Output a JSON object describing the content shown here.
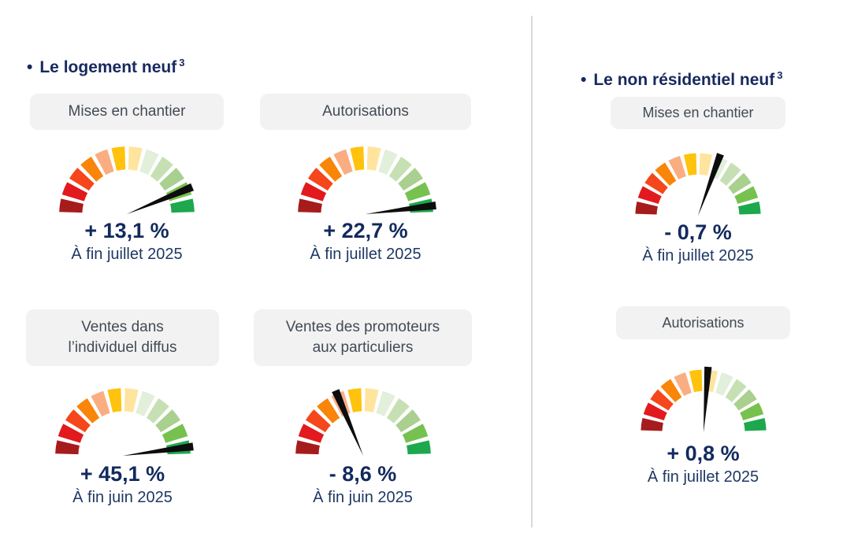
{
  "colors": {
    "title_navy": "#17295E",
    "value_navy": "#132A5E",
    "period_navy": "#1F3864",
    "pill_bg": "#F2F2F2",
    "pill_text": "#424A54",
    "divider": "#D9D9D9",
    "needle": "#0D0D0D"
  },
  "gauge_palette": [
    "#A61C1D",
    "#E21A1D",
    "#F5471B",
    "#F98509",
    "#FBAD82",
    "#FFC20D",
    "#FFE49E",
    "#E2EFDA",
    "#C6E0B4",
    "#A9D08E",
    "#77C14F",
    "#1DA84D"
  ],
  "sections": [
    {
      "bullet": "•",
      "title": "Le logement neuf",
      "footnote": "3",
      "gauges": [
        {
          "label": "Mises en chantier",
          "value": "+ 13,1 %",
          "period": "À fin juillet 2025",
          "needle_deg": 22.5
        },
        {
          "label": "Autorisations",
          "value": "+ 22,7 %",
          "period": "À fin juillet 2025",
          "needle_deg": 7
        },
        {
          "label": "Ventes dans\nl’individuel diffus",
          "value": "+ 45,1 %",
          "period": "À fin juin 2025",
          "needle_deg": 7.5
        },
        {
          "label": "Ventes des promoteurs\naux particuliers",
          "value": "- 8,6 %",
          "period": "À fin juin 2025",
          "needle_deg": 113
        }
      ]
    },
    {
      "bullet": "•",
      "title": "Le non résidentiel neuf",
      "footnote": "3",
      "gauges": [
        {
          "label": "Mises en chantier",
          "value": "- 0,7 %",
          "period": "À fin juillet 2025",
          "needle_deg": 70
        },
        {
          "label": "Autorisations",
          "value": "+ 0,8 %",
          "period": "À fin juillet 2025",
          "needle_deg": 86
        }
      ]
    }
  ],
  "chart_data": [
    {
      "type": "gauge",
      "section": "Le logement neuf",
      "label": "Mises en chantier",
      "value_pct": 13.1,
      "value_label": "+ 13,1 %",
      "period": "À fin juillet 2025",
      "scale_segments": 12,
      "scale": "semicircle dark-red (negative) to green (positive)"
    },
    {
      "type": "gauge",
      "section": "Le logement neuf",
      "label": "Autorisations",
      "value_pct": 22.7,
      "value_label": "+ 22,7 %",
      "period": "À fin juillet 2025",
      "scale_segments": 12,
      "scale": "semicircle dark-red (negative) to green (positive)"
    },
    {
      "type": "gauge",
      "section": "Le logement neuf",
      "label": "Ventes dans l’individuel diffus",
      "value_pct": 45.1,
      "value_label": "+ 45,1 %",
      "period": "À fin juin 2025",
      "scale_segments": 12,
      "scale": "semicircle dark-red (negative) to green (positive)"
    },
    {
      "type": "gauge",
      "section": "Le logement neuf",
      "label": "Ventes des promoteurs aux particuliers",
      "value_pct": -8.6,
      "value_label": "- 8,6 %",
      "period": "À fin juin 2025",
      "scale_segments": 12,
      "scale": "semicircle dark-red (negative) to green (positive)"
    },
    {
      "type": "gauge",
      "section": "Le non résidentiel neuf",
      "label": "Mises en chantier",
      "value_pct": -0.7,
      "value_label": "- 0,7 %",
      "period": "À fin juillet 2025",
      "scale_segments": 12,
      "scale": "semicircle dark-red (negative) to green (positive)"
    },
    {
      "type": "gauge",
      "section": "Le non résidentiel neuf",
      "label": "Autorisations",
      "value_pct": 0.8,
      "value_label": "+ 0,8 %",
      "period": "À fin juillet 2025",
      "scale_segments": 12,
      "scale": "semicircle dark-red (negative) to green (positive)"
    }
  ]
}
